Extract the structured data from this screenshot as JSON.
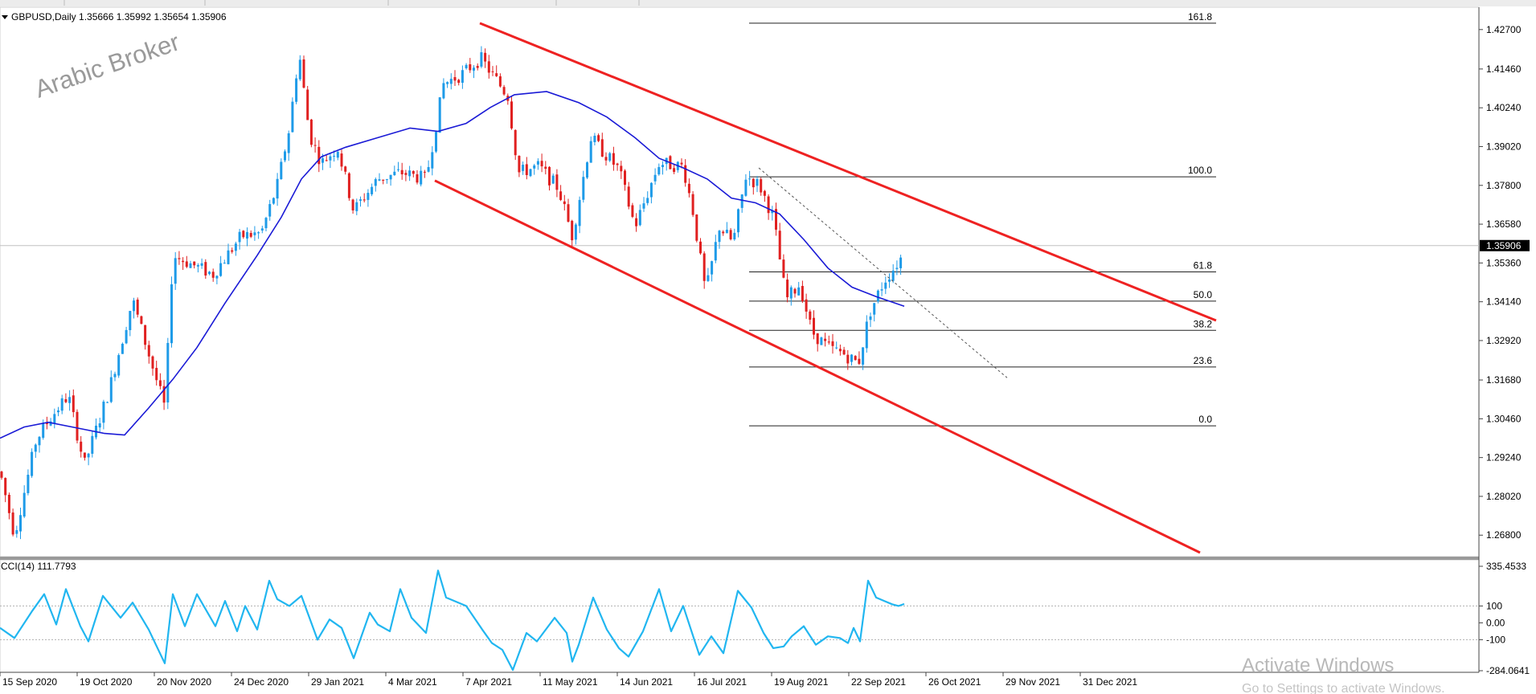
{
  "window": {
    "symbol_header": "GBPUSD,Daily  1.35666 1.35992 1.35654 1.35906",
    "watermark": "Arabic Broker",
    "activate": {
      "title": "Activate Windows",
      "subtitle": "Go to Settings to activate Windows."
    }
  },
  "colors": {
    "bull": "#1e9be8",
    "bear": "#e02020",
    "ma": "#1a1ad6",
    "channel": "#ee2222",
    "cci": "#21b6f0",
    "fib": "#222222",
    "price_tag_bg": "#000000"
  },
  "chart_data": [
    {
      "type": "candlestick",
      "symbol": "GBPUSD",
      "timeframe": "Daily",
      "ohlc_header": {
        "open": 1.35666,
        "high": 1.35992,
        "low": 1.35654,
        "close": 1.35906
      },
      "current_price": "1.35906",
      "ylim": [
        1.262,
        1.432
      ],
      "y_ticks": [
        "1.42700",
        "1.41460",
        "1.40240",
        "1.39020",
        "1.37800",
        "1.36580",
        "1.35360",
        "1.34140",
        "1.32920",
        "1.31680",
        "1.30460",
        "1.29240",
        "1.28020",
        "1.26800"
      ],
      "x_ticks": [
        "15 Sep 2020",
        "19 Oct 2020",
        "20 Nov 2020",
        "24 Dec 2020",
        "29 Jan 2021",
        "4 Mar 2021",
        "7 Apr 2021",
        "11 May 2021",
        "14 Jun 2021",
        "16 Jul 2021",
        "19 Aug 2021",
        "22 Sep 2021",
        "26 Oct 2021",
        "29 Nov 2021",
        "31 Dec 2021"
      ],
      "moving_average_path": [
        [
          0,
          1.2985
        ],
        [
          30,
          1.302
        ],
        [
          60,
          1.3035
        ],
        [
          100,
          1.3015
        ],
        [
          130,
          1.3
        ],
        [
          155,
          1.2995
        ],
        [
          185,
          1.308
        ],
        [
          215,
          1.317
        ],
        [
          245,
          1.327
        ],
        [
          280,
          1.341
        ],
        [
          320,
          1.356
        ],
        [
          350,
          1.368
        ],
        [
          375,
          1.38
        ],
        [
          400,
          1.387
        ],
        [
          430,
          1.39
        ],
        [
          470,
          1.393
        ],
        [
          510,
          1.396
        ],
        [
          545,
          1.395
        ],
        [
          580,
          1.3975
        ],
        [
          610,
          1.4025
        ],
        [
          640,
          1.4065
        ],
        [
          680,
          1.4075
        ],
        [
          720,
          1.404
        ],
        [
          755,
          1.3995
        ],
        [
          790,
          1.393
        ],
        [
          820,
          1.3865
        ],
        [
          850,
          1.3835
        ],
        [
          880,
          1.38
        ],
        [
          910,
          1.374
        ],
        [
          940,
          1.3725
        ],
        [
          970,
          1.369
        ],
        [
          1000,
          1.361
        ],
        [
          1030,
          1.352
        ],
        [
          1060,
          1.346
        ],
        [
          1090,
          1.343
        ],
        [
          1125,
          1.34
        ]
      ],
      "channel_upper": [
        [
          597,
          1.429
        ],
        [
          1513,
          1.3355
        ]
      ],
      "channel_lower": [
        [
          541,
          1.3795
        ],
        [
          1493,
          1.2625
        ]
      ],
      "trend_line_dotted": [
        [
          944,
          1.3835
        ],
        [
          1253,
          1.3175
        ]
      ],
      "fibonacci": [
        {
          "level": "161.8",
          "price": 1.429
        },
        {
          "level": "100.0",
          "price": 1.3807
        },
        {
          "level": "61.8",
          "price": 1.3508
        },
        {
          "level": "50.0",
          "price": 1.3416
        },
        {
          "level": "38.2",
          "price": 1.3324
        },
        {
          "level": "23.6",
          "price": 1.3209
        },
        {
          "level": "0.0",
          "price": 1.3024
        }
      ],
      "fib_x_range": [
        932,
        1513
      ],
      "price_anchors": [
        [
          0,
          1.288
        ],
        [
          18,
          1.268
        ],
        [
          45,
          1.298
        ],
        [
          60,
          1.304
        ],
        [
          85,
          1.312
        ],
        [
          105,
          1.29
        ],
        [
          135,
          1.313
        ],
        [
          165,
          1.342
        ],
        [
          205,
          1.308
        ],
        [
          215,
          1.356
        ],
        [
          265,
          1.35
        ],
        [
          300,
          1.362
        ],
        [
          325,
          1.363
        ],
        [
          345,
          1.378
        ],
        [
          360,
          1.396
        ],
        [
          372,
          1.42
        ],
        [
          385,
          1.394
        ],
        [
          400,
          1.385
        ],
        [
          420,
          1.39
        ],
        [
          440,
          1.37
        ],
        [
          470,
          1.38
        ],
        [
          500,
          1.382
        ],
        [
          530,
          1.38
        ],
        [
          552,
          1.41
        ],
        [
          575,
          1.413
        ],
        [
          598,
          1.418
        ],
        [
          615,
          1.412
        ],
        [
          632,
          1.406
        ],
        [
          645,
          1.382
        ],
        [
          670,
          1.384
        ],
        [
          695,
          1.377
        ],
        [
          712,
          1.362
        ],
        [
          735,
          1.393
        ],
        [
          770,
          1.383
        ],
        [
          790,
          1.365
        ],
        [
          820,
          1.385
        ],
        [
          850,
          1.384
        ],
        [
          862,
          1.37
        ],
        [
          878,
          1.344
        ],
        [
          895,
          1.365
        ],
        [
          912,
          1.36
        ],
        [
          928,
          1.381
        ],
        [
          945,
          1.378
        ],
        [
          962,
          1.368
        ],
        [
          978,
          1.342
        ],
        [
          995,
          1.347
        ],
        [
          1010,
          1.332
        ],
        [
          1030,
          1.327
        ],
        [
          1050,
          1.325
        ],
        [
          1068,
          1.322
        ],
        [
          1082,
          1.338
        ],
        [
          1100,
          1.348
        ],
        [
          1112,
          1.352
        ],
        [
          1123,
          1.356
        ]
      ]
    },
    {
      "type": "line",
      "indicator": "CCI",
      "label": "CCI(14) 111.7793",
      "ylim": [
        -284.0641,
        335.4533
      ],
      "y_ticks": [
        "335.4533",
        "100",
        "0.00",
        "-100",
        "-284.0641"
      ],
      "levels": [
        100,
        -100
      ],
      "path": [
        [
          0,
          -30
        ],
        [
          18,
          -90
        ],
        [
          40,
          70
        ],
        [
          55,
          170
        ],
        [
          70,
          -10
        ],
        [
          82,
          200
        ],
        [
          100,
          -20
        ],
        [
          110,
          -110
        ],
        [
          128,
          160
        ],
        [
          150,
          30
        ],
        [
          165,
          120
        ],
        [
          185,
          -40
        ],
        [
          205,
          -240
        ],
        [
          215,
          170
        ],
        [
          230,
          -20
        ],
        [
          245,
          170
        ],
        [
          268,
          -20
        ],
        [
          280,
          130
        ],
        [
          295,
          -50
        ],
        [
          305,
          100
        ],
        [
          320,
          -40
        ],
        [
          335,
          250
        ],
        [
          345,
          140
        ],
        [
          360,
          100
        ],
        [
          375,
          160
        ],
        [
          395,
          -100
        ],
        [
          410,
          20
        ],
        [
          425,
          -30
        ],
        [
          440,
          -210
        ],
        [
          460,
          60
        ],
        [
          470,
          -10
        ],
        [
          485,
          -50
        ],
        [
          498,
          200
        ],
        [
          512,
          30
        ],
        [
          530,
          -60
        ],
        [
          545,
          310
        ],
        [
          555,
          150
        ],
        [
          580,
          100
        ],
        [
          600,
          -40
        ],
        [
          612,
          -120
        ],
        [
          625,
          -160
        ],
        [
          638,
          -280
        ],
        [
          655,
          -60
        ],
        [
          668,
          -110
        ],
        [
          690,
          30
        ],
        [
          705,
          -60
        ],
        [
          712,
          -230
        ],
        [
          720,
          -130
        ],
        [
          738,
          150
        ],
        [
          755,
          -40
        ],
        [
          770,
          -150
        ],
        [
          782,
          -200
        ],
        [
          800,
          -50
        ],
        [
          820,
          200
        ],
        [
          835,
          -50
        ],
        [
          850,
          100
        ],
        [
          870,
          -190
        ],
        [
          885,
          -80
        ],
        [
          900,
          -180
        ],
        [
          918,
          190
        ],
        [
          935,
          90
        ],
        [
          950,
          -60
        ],
        [
          962,
          -150
        ],
        [
          975,
          -140
        ],
        [
          985,
          -80
        ],
        [
          1000,
          -20
        ],
        [
          1015,
          -130
        ],
        [
          1030,
          -80
        ],
        [
          1045,
          -90
        ],
        [
          1055,
          -120
        ],
        [
          1062,
          -30
        ],
        [
          1070,
          -110
        ],
        [
          1080,
          250
        ],
        [
          1090,
          150
        ],
        [
          1100,
          130
        ],
        [
          1110,
          110
        ],
        [
          1118,
          100
        ],
        [
          1125,
          112
        ]
      ]
    }
  ]
}
